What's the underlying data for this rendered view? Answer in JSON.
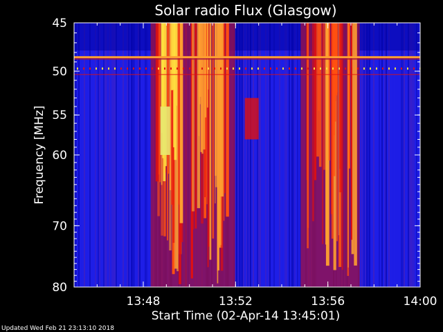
{
  "chart_data": {
    "type": "heatmap",
    "title": "Solar radio Flux (Glasgow)",
    "xlabel": "Start Time (02-Apr-14 13:45:01)",
    "ylabel": "Frequency [MHz]",
    "x_ticks": [
      "13:48",
      "13:52",
      "13:56",
      "14:00"
    ],
    "x_tick_minutes": [
      3,
      7,
      11,
      15
    ],
    "xlim_minutes_after_1345": [
      0,
      15
    ],
    "y_ticks": [
      45,
      50,
      55,
      60,
      70,
      80
    ],
    "ylim": [
      45,
      80
    ],
    "y_scale": "log",
    "colormap": [
      "#0000a0",
      "#1e1ee6",
      "#5020b0",
      "#a01040",
      "#e01010",
      "#ff5010",
      "#ffa030",
      "#ffe040",
      "#e8e870"
    ],
    "features": [
      {
        "kind": "burst",
        "t_min": 3.5,
        "t_max": 4.7,
        "f_low": 45,
        "f_high": 80,
        "peak": "yellow"
      },
      {
        "kind": "burst",
        "t_min": 5.0,
        "t_max": 6.8,
        "f_low": 45,
        "f_high": 80,
        "peak": "orange-yellow"
      },
      {
        "kind": "burst",
        "t_min": 10.0,
        "t_max": 12.2,
        "f_low": 45,
        "f_high": 80,
        "peak": "orange"
      },
      {
        "kind": "interference_line",
        "f": 48.5
      }
    ]
  },
  "footer": {
    "updated": "Updated Wed Feb 21 23:13:10 2018"
  }
}
